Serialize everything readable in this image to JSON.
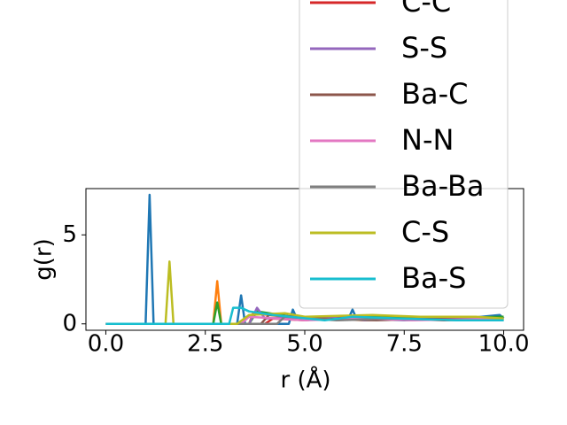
{
  "chart_data": {
    "type": "line",
    "xlabel": "r (Å)",
    "ylabel": "g(r)",
    "xlim": [
      -0.5,
      10.5
    ],
    "ylim": [
      -0.36,
      7.6
    ],
    "xticks": [
      {
        "value": 0,
        "label": "0.0"
      },
      {
        "value": 2.5,
        "label": "2.5"
      },
      {
        "value": 5,
        "label": "5.0"
      },
      {
        "value": 7.5,
        "label": "7.5"
      },
      {
        "value": 10,
        "label": "10.0"
      }
    ],
    "yticks": [
      0,
      5
    ],
    "series": [
      {
        "color": "#1f77b4",
        "x": [
          0,
          1.0,
          1.1,
          1.2,
          3.3,
          3.4,
          3.5,
          4.6,
          4.7,
          4.8,
          6.1,
          6.2,
          6.3,
          7.5,
          9.0,
          9.9,
          10
        ],
        "values": [
          0,
          0,
          7.25,
          0,
          0,
          1.6,
          0,
          0,
          0.8,
          0.3,
          0.3,
          0.8,
          0.3,
          0.2,
          0.3,
          0.5,
          0.3
        ]
      },
      {
        "color": "#ff7f0e",
        "x": [
          0,
          2.7,
          2.8,
          2.9,
          3.6,
          3.7,
          4.5,
          5.5,
          6.5,
          8,
          10
        ],
        "values": [
          0,
          0,
          2.4,
          0,
          0,
          0.6,
          0.4,
          0.3,
          0.2,
          0.3,
          0.2
        ]
      },
      {
        "color": "#2ca02c",
        "x": [
          0,
          2.7,
          2.8,
          2.9,
          3.6,
          3.8,
          5,
          6.5,
          8,
          10
        ],
        "values": [
          0,
          0,
          1.2,
          0,
          0,
          0.7,
          0.3,
          0.4,
          0.3,
          0.4
        ]
      },
      {
        "name": "C-C",
        "color": "#d62728",
        "x": [
          0,
          4,
          4.2,
          5,
          6,
          7.2,
          8.5,
          10
        ],
        "values": [
          0,
          0,
          0.3,
          0.2,
          0.4,
          0.3,
          0.2,
          0.3
        ]
      },
      {
        "name": "S-S",
        "color": "#9467bd",
        "x": [
          0,
          3.6,
          3.8,
          4,
          5.3,
          6.5,
          8,
          10
        ],
        "values": [
          0,
          0,
          0.9,
          0.3,
          0.4,
          0.2,
          0.3,
          0.2
        ]
      },
      {
        "name": "Ba-C",
        "color": "#8c564b",
        "x": [
          0,
          3.9,
          4.1,
          5.4,
          6.8,
          8.3,
          10
        ],
        "values": [
          0,
          0,
          0.5,
          0.3,
          0.2,
          0.3,
          0.2
        ]
      },
      {
        "name": "N-N",
        "color": "#e377c2",
        "x": [
          0,
          3.4,
          3.6,
          5,
          6.4,
          7.7,
          10
        ],
        "values": [
          0,
          0,
          0.4,
          0.2,
          0.3,
          0.2,
          0.3
        ]
      },
      {
        "name": "Ba-Ba",
        "color": "#7f7f7f",
        "x": [
          0,
          4.3,
          4.5,
          5.8,
          7.3,
          9,
          10
        ],
        "values": [
          0,
          0,
          0.4,
          0.2,
          0.3,
          0.2,
          0.2
        ]
      },
      {
        "name": "C-S",
        "color": "#bcbd22",
        "x": [
          0,
          1.5,
          1.6,
          1.7,
          3.3,
          3.6,
          4.5,
          5,
          6.7,
          7.9,
          9.3,
          10
        ],
        "values": [
          0,
          0,
          3.5,
          0,
          0,
          0.5,
          0.6,
          0.4,
          0.5,
          0.4,
          0.4,
          0.3
        ]
      },
      {
        "name": "Ba-S",
        "color": "#17becf",
        "x": [
          0,
          3.1,
          3.2,
          3.4,
          3.6,
          4.2,
          5.5,
          6.2,
          7.4,
          8.8,
          10
        ],
        "values": [
          0,
          0,
          0.9,
          0.9,
          0.7,
          0.5,
          0.2,
          0.4,
          0.3,
          0.2,
          0.2
        ]
      }
    ]
  }
}
